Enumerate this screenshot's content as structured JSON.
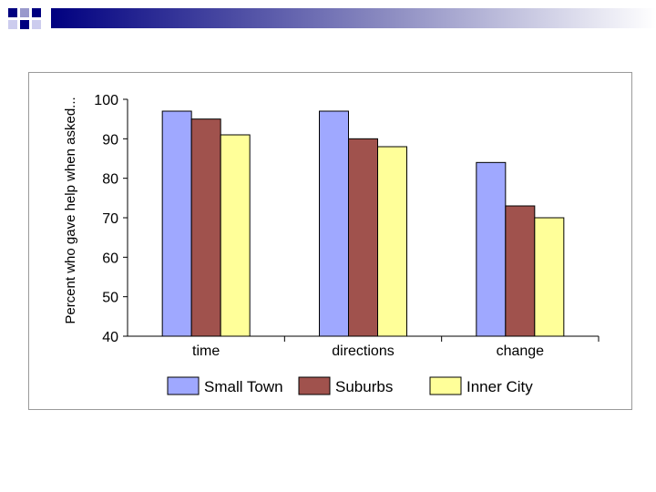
{
  "chart_data": {
    "type": "bar",
    "categories": [
      "time",
      "directions",
      "change"
    ],
    "series": [
      {
        "name": "Small Town",
        "values": [
          97,
          97,
          84
        ],
        "color": "#9fa8ff"
      },
      {
        "name": "Suburbs",
        "values": [
          95,
          90,
          73
        ],
        "color": "#a0524d"
      },
      {
        "name": "Inner City",
        "values": [
          91,
          88,
          70
        ],
        "color": "#ffff99"
      }
    ],
    "title": "",
    "xlabel": "",
    "ylabel": "Percent who gave help when asked...",
    "ylim": [
      40,
      100
    ],
    "yticks": [
      40,
      50,
      60,
      70,
      80,
      90,
      100
    ],
    "grid": false,
    "legend_position": "bottom"
  },
  "decor": {
    "bar_left_colors": [
      "#000080",
      "#1a1a8a"
    ],
    "accent": "#000080"
  }
}
